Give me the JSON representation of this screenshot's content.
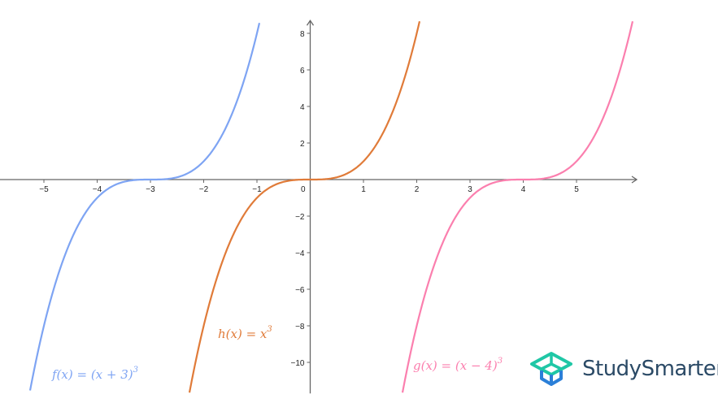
{
  "chart_data": {
    "type": "line",
    "xlim": [
      -5.82,
      6.13
    ],
    "ylim": [
      -11.7,
      8.7
    ],
    "xticks": [
      -5,
      -4,
      -3,
      -2,
      -1,
      1,
      2,
      3,
      4,
      5
    ],
    "yticks": [
      -10,
      -8,
      -6,
      -4,
      -2,
      2,
      4,
      6,
      8
    ],
    "origin_label": "0",
    "grid": false,
    "series": [
      {
        "name": "f(x) = (x + 3)^3",
        "shift": -3,
        "color": "#7ea4f3",
        "label_parts": [
          "f(x)",
          "=",
          "(x + 3)",
          "3"
        ]
      },
      {
        "name": "h(x) = x^3",
        "shift": 0,
        "color": "#e07b39",
        "label_parts": [
          "h(x)",
          "=",
          "x",
          "3"
        ]
      },
      {
        "name": "g(x) = (x − 4)^3",
        "shift": 4,
        "color": "#fb7fae",
        "label_parts": [
          "g(x)",
          "=",
          "(x − 4)",
          "3"
        ]
      }
    ]
  },
  "logo": {
    "text": "StudySmarter",
    "colors": [
      "#1fc7a6",
      "#2b7fd8"
    ]
  }
}
